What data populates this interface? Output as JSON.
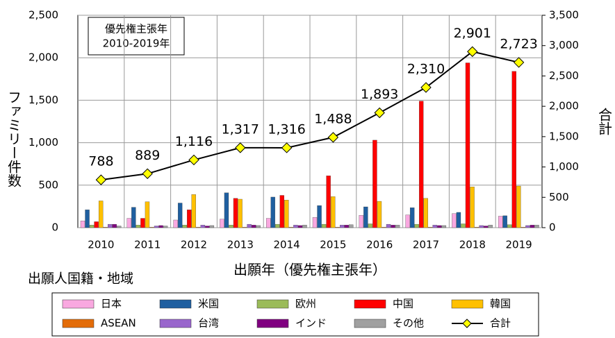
{
  "chart_data": {
    "type": "bar",
    "title_lines": [
      "優先権主張年",
      "2010-2019年"
    ],
    "x_label": "出願年（優先権主張年）",
    "y_label": "ファミリー件数",
    "y2_label": "合計",
    "legend_title": "出願人国籍・地域",
    "categories": [
      "2010",
      "2011",
      "2012",
      "2013",
      "2014",
      "2015",
      "2016",
      "2017",
      "2018",
      "2019"
    ],
    "ylim": [
      0,
      2500
    ],
    "yticks": [
      0,
      500,
      {
        "value": 1000,
        "label": "1,000"
      },
      {
        "value": 1500,
        "label": "1,500"
      },
      {
        "value": 2000,
        "label": "2,000"
      },
      {
        "value": 2500,
        "label": "2,500"
      }
    ],
    "y2lim": [
      0,
      3500
    ],
    "y2ticks": [
      0,
      500,
      {
        "value": 1000,
        "label": "1,000"
      },
      {
        "value": 1500,
        "label": "1,500"
      },
      {
        "value": 2000,
        "label": "2,000"
      },
      {
        "value": 2500,
        "label": "2,500"
      },
      {
        "value": 3000,
        "label": "3,000"
      },
      {
        "value": 3500,
        "label": "3,500"
      }
    ],
    "grid": true,
    "series": [
      {
        "name": "日本",
        "color": "#f9a8e0",
        "values": [
          80,
          110,
          90,
          100,
          110,
          120,
          145,
          150,
          165,
          135
        ]
      },
      {
        "name": "米国",
        "color": "#1f5fa0",
        "values": [
          210,
          240,
          290,
          410,
          360,
          260,
          245,
          235,
          180,
          140
        ]
      },
      {
        "name": "欧州",
        "color": "#9bbb59",
        "values": [
          30,
          30,
          30,
          30,
          40,
          40,
          45,
          40,
          45,
          35
        ]
      },
      {
        "name": "中国",
        "color": "#ff0000",
        "values": [
          70,
          110,
          210,
          345,
          380,
          610,
          1030,
          1490,
          1940,
          1840
        ]
      },
      {
        "name": "韓国",
        "color": "#ffc000",
        "values": [
          315,
          305,
          390,
          335,
          325,
          365,
          310,
          345,
          480,
          490
        ]
      },
      {
        "name": "ASEAN",
        "color": "#e36c09",
        "values": [
          5,
          5,
          5,
          5,
          5,
          5,
          5,
          5,
          5,
          5
        ]
      },
      {
        "name": "台湾",
        "color": "#9966cc",
        "values": [
          40,
          20,
          30,
          40,
          30,
          30,
          40,
          30,
          25,
          25
        ]
      },
      {
        "name": "インド",
        "color": "#800080",
        "values": [
          40,
          25,
          20,
          30,
          25,
          30,
          30,
          25,
          20,
          30
        ]
      },
      {
        "name": "その他",
        "color": "#a0a0a0",
        "values": [
          20,
          20,
          25,
          25,
          30,
          35,
          30,
          25,
          30,
          30
        ]
      },
      {
        "name": "合計",
        "type": "line",
        "axis": "y2",
        "color": "#000000",
        "marker_color": "#ffff00",
        "values": [
          788,
          889,
          1116,
          1317,
          1316,
          1488,
          1893,
          2310,
          2901,
          2723
        ],
        "value_labels": [
          "788",
          "889",
          "1,116",
          "1,317",
          "1,316",
          "1,488",
          "1,893",
          "2,310",
          "2,901",
          "2,723"
        ]
      }
    ]
  }
}
